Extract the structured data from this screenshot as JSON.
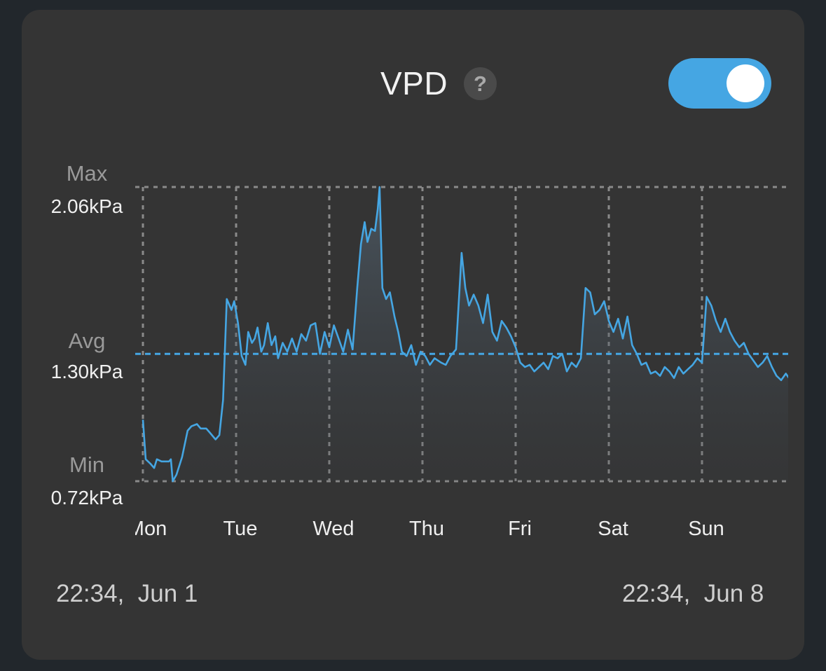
{
  "header": {
    "title": "VPD",
    "help_symbol": "?",
    "toggle_on": true
  },
  "y_labels": {
    "max_caption": "Max",
    "max_value": "2.06kPa",
    "avg_caption": "Avg",
    "avg_value": "1.30kPa",
    "min_caption": "Min",
    "min_value": "0.72kPa"
  },
  "x_labels": [
    "Mon",
    "Tue",
    "Wed",
    "Thu",
    "Fri",
    "Sat",
    "Sun"
  ],
  "range": {
    "start": "22:34,  Jun 1",
    "end": "22:34,  Jun 8"
  },
  "colors": {
    "accent": "#45a6e3",
    "card": "#343434",
    "background": "#22272c"
  },
  "chart_data": {
    "type": "line",
    "ylim": [
      0.72,
      2.06
    ],
    "xlim": [
      0,
      7
    ],
    "avg": 1.3,
    "x_tick_labels": [
      "Mon",
      "Tue",
      "Wed",
      "Thu",
      "Fri",
      "Sat",
      "Sun"
    ],
    "series": [
      {
        "points": [
          [
            0.0,
            1.0
          ],
          [
            0.03,
            0.82
          ],
          [
            0.08,
            0.8
          ],
          [
            0.12,
            0.78
          ],
          [
            0.15,
            0.82
          ],
          [
            0.2,
            0.81
          ],
          [
            0.25,
            0.81
          ],
          [
            0.28,
            0.81
          ],
          [
            0.3,
            0.82
          ],
          [
            0.32,
            0.72
          ],
          [
            0.36,
            0.75
          ],
          [
            0.42,
            0.83
          ],
          [
            0.48,
            0.95
          ],
          [
            0.52,
            0.97
          ],
          [
            0.58,
            0.98
          ],
          [
            0.62,
            0.96
          ],
          [
            0.68,
            0.96
          ],
          [
            0.72,
            0.94
          ],
          [
            0.78,
            0.91
          ],
          [
            0.82,
            0.93
          ],
          [
            0.86,
            1.09
          ],
          [
            0.9,
            1.55
          ],
          [
            0.95,
            1.5
          ],
          [
            0.98,
            1.54
          ],
          [
            1.02,
            1.44
          ],
          [
            1.06,
            1.29
          ],
          [
            1.1,
            1.25
          ],
          [
            1.13,
            1.4
          ],
          [
            1.17,
            1.35
          ],
          [
            1.2,
            1.37
          ],
          [
            1.23,
            1.42
          ],
          [
            1.27,
            1.31
          ],
          [
            1.3,
            1.34
          ],
          [
            1.34,
            1.44
          ],
          [
            1.38,
            1.34
          ],
          [
            1.42,
            1.38
          ],
          [
            1.45,
            1.28
          ],
          [
            1.5,
            1.35
          ],
          [
            1.55,
            1.31
          ],
          [
            1.6,
            1.37
          ],
          [
            1.65,
            1.31
          ],
          [
            1.7,
            1.39
          ],
          [
            1.75,
            1.36
          ],
          [
            1.8,
            1.43
          ],
          [
            1.85,
            1.44
          ],
          [
            1.9,
            1.3
          ],
          [
            1.95,
            1.4
          ],
          [
            2.0,
            1.33
          ],
          [
            2.05,
            1.43
          ],
          [
            2.1,
            1.37
          ],
          [
            2.15,
            1.31
          ],
          [
            2.2,
            1.41
          ],
          [
            2.25,
            1.32
          ],
          [
            2.3,
            1.6
          ],
          [
            2.34,
            1.8
          ],
          [
            2.38,
            1.9
          ],
          [
            2.41,
            1.81
          ],
          [
            2.45,
            1.87
          ],
          [
            2.49,
            1.86
          ],
          [
            2.52,
            1.96
          ],
          [
            2.54,
            2.06
          ],
          [
            2.57,
            1.6
          ],
          [
            2.61,
            1.55
          ],
          [
            2.65,
            1.58
          ],
          [
            2.7,
            1.47
          ],
          [
            2.74,
            1.4
          ],
          [
            2.78,
            1.31
          ],
          [
            2.83,
            1.29
          ],
          [
            2.88,
            1.34
          ],
          [
            2.93,
            1.25
          ],
          [
            2.98,
            1.31
          ],
          [
            3.03,
            1.29
          ],
          [
            3.08,
            1.25
          ],
          [
            3.13,
            1.28
          ],
          [
            3.2,
            1.26
          ],
          [
            3.25,
            1.25
          ],
          [
            3.3,
            1.29
          ],
          [
            3.36,
            1.32
          ],
          [
            3.42,
            1.76
          ],
          [
            3.46,
            1.6
          ],
          [
            3.5,
            1.52
          ],
          [
            3.55,
            1.57
          ],
          [
            3.6,
            1.52
          ],
          [
            3.65,
            1.44
          ],
          [
            3.7,
            1.57
          ],
          [
            3.75,
            1.4
          ],
          [
            3.8,
            1.36
          ],
          [
            3.85,
            1.45
          ],
          [
            3.9,
            1.42
          ],
          [
            3.95,
            1.38
          ],
          [
            4.0,
            1.33
          ],
          [
            4.05,
            1.26
          ],
          [
            4.1,
            1.24
          ],
          [
            4.15,
            1.25
          ],
          [
            4.2,
            1.22
          ],
          [
            4.25,
            1.24
          ],
          [
            4.3,
            1.26
          ],
          [
            4.35,
            1.23
          ],
          [
            4.4,
            1.29
          ],
          [
            4.45,
            1.28
          ],
          [
            4.5,
            1.3
          ],
          [
            4.55,
            1.22
          ],
          [
            4.6,
            1.26
          ],
          [
            4.65,
            1.24
          ],
          [
            4.7,
            1.28
          ],
          [
            4.75,
            1.6
          ],
          [
            4.8,
            1.58
          ],
          [
            4.85,
            1.48
          ],
          [
            4.9,
            1.5
          ],
          [
            4.95,
            1.54
          ],
          [
            5.0,
            1.45
          ],
          [
            5.05,
            1.4
          ],
          [
            5.1,
            1.46
          ],
          [
            5.15,
            1.37
          ],
          [
            5.2,
            1.47
          ],
          [
            5.25,
            1.34
          ],
          [
            5.3,
            1.3
          ],
          [
            5.35,
            1.25
          ],
          [
            5.4,
            1.26
          ],
          [
            5.45,
            1.21
          ],
          [
            5.5,
            1.22
          ],
          [
            5.55,
            1.2
          ],
          [
            5.6,
            1.24
          ],
          [
            5.65,
            1.22
          ],
          [
            5.7,
            1.19
          ],
          [
            5.75,
            1.24
          ],
          [
            5.8,
            1.21
          ],
          [
            5.85,
            1.23
          ],
          [
            5.9,
            1.25
          ],
          [
            5.95,
            1.28
          ],
          [
            6.0,
            1.26
          ],
          [
            6.05,
            1.56
          ],
          [
            6.1,
            1.52
          ],
          [
            6.15,
            1.45
          ],
          [
            6.2,
            1.4
          ],
          [
            6.25,
            1.46
          ],
          [
            6.3,
            1.4
          ],
          [
            6.35,
            1.36
          ],
          [
            6.4,
            1.33
          ],
          [
            6.45,
            1.35
          ],
          [
            6.5,
            1.3
          ],
          [
            6.55,
            1.27
          ],
          [
            6.6,
            1.24
          ],
          [
            6.65,
            1.26
          ],
          [
            6.7,
            1.29
          ],
          [
            6.75,
            1.24
          ],
          [
            6.8,
            1.2
          ],
          [
            6.85,
            1.18
          ],
          [
            6.9,
            1.21
          ],
          [
            6.95,
            1.18
          ],
          [
            7.0,
            1.24
          ]
        ]
      }
    ]
  }
}
